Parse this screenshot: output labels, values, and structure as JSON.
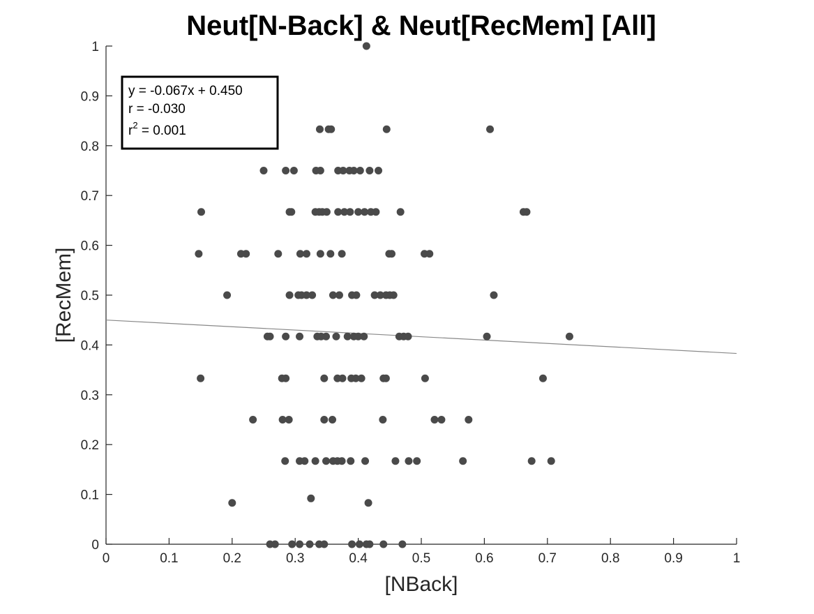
{
  "chart_data": {
    "type": "scatter",
    "title": "Neut[N-Back] & Neut[RecMem] [All]",
    "xlabel": "[NBack]",
    "ylabel": "[RecMem]",
    "xlim": [
      0,
      1
    ],
    "ylim": [
      0,
      1
    ],
    "xticks": [
      "0",
      "0.1",
      "0.2",
      "0.3",
      "0.4",
      "0.5",
      "0.6",
      "0.7",
      "0.8",
      "0.9",
      "1"
    ],
    "yticks": [
      "0",
      "0.1",
      "0.2",
      "0.3",
      "0.4",
      "0.5",
      "0.6",
      "0.7",
      "0.8",
      "0.9",
      "1"
    ],
    "grid": false,
    "marker_color": "#4a4a4a",
    "fit_line_color": "#888888",
    "fit_line": {
      "slope": -0.067,
      "intercept": 0.45
    },
    "annotation": {
      "equation": "y = -0.067x + 0.450",
      "r": "r = -0.030",
      "r2_prefix": "r",
      "r2_superscript": "2",
      "r2_value": " = 0.001",
      "placement": "top-left"
    },
    "points": [
      [
        0.413,
        1.0
      ],
      [
        0.339,
        0.833
      ],
      [
        0.353,
        0.833
      ],
      [
        0.357,
        0.833
      ],
      [
        0.445,
        0.833
      ],
      [
        0.609,
        0.833
      ],
      [
        0.25,
        0.75
      ],
      [
        0.285,
        0.75
      ],
      [
        0.298,
        0.75
      ],
      [
        0.333,
        0.75
      ],
      [
        0.34,
        0.75
      ],
      [
        0.368,
        0.75
      ],
      [
        0.376,
        0.75
      ],
      [
        0.386,
        0.75
      ],
      [
        0.393,
        0.75
      ],
      [
        0.403,
        0.75
      ],
      [
        0.418,
        0.75
      ],
      [
        0.432,
        0.75
      ],
      [
        0.151,
        0.667
      ],
      [
        0.291,
        0.667
      ],
      [
        0.294,
        0.667
      ],
      [
        0.332,
        0.667
      ],
      [
        0.338,
        0.667
      ],
      [
        0.343,
        0.667
      ],
      [
        0.35,
        0.667
      ],
      [
        0.368,
        0.667
      ],
      [
        0.378,
        0.667
      ],
      [
        0.387,
        0.667
      ],
      [
        0.4,
        0.667
      ],
      [
        0.41,
        0.667
      ],
      [
        0.42,
        0.667
      ],
      [
        0.428,
        0.667
      ],
      [
        0.467,
        0.667
      ],
      [
        0.662,
        0.667
      ],
      [
        0.667,
        0.667
      ],
      [
        0.147,
        0.583
      ],
      [
        0.214,
        0.583
      ],
      [
        0.222,
        0.583
      ],
      [
        0.273,
        0.583
      ],
      [
        0.308,
        0.583
      ],
      [
        0.318,
        0.583
      ],
      [
        0.34,
        0.583
      ],
      [
        0.356,
        0.583
      ],
      [
        0.374,
        0.583
      ],
      [
        0.449,
        0.583
      ],
      [
        0.453,
        0.583
      ],
      [
        0.505,
        0.583
      ],
      [
        0.513,
        0.583
      ],
      [
        0.192,
        0.5
      ],
      [
        0.291,
        0.5
      ],
      [
        0.305,
        0.5
      ],
      [
        0.31,
        0.5
      ],
      [
        0.318,
        0.5
      ],
      [
        0.327,
        0.5
      ],
      [
        0.36,
        0.5
      ],
      [
        0.37,
        0.5
      ],
      [
        0.39,
        0.5
      ],
      [
        0.397,
        0.5
      ],
      [
        0.426,
        0.5
      ],
      [
        0.435,
        0.5
      ],
      [
        0.444,
        0.5
      ],
      [
        0.45,
        0.5
      ],
      [
        0.456,
        0.5
      ],
      [
        0.615,
        0.5
      ],
      [
        0.256,
        0.417
      ],
      [
        0.26,
        0.417
      ],
      [
        0.285,
        0.417
      ],
      [
        0.307,
        0.417
      ],
      [
        0.335,
        0.417
      ],
      [
        0.341,
        0.417
      ],
      [
        0.349,
        0.417
      ],
      [
        0.365,
        0.417
      ],
      [
        0.383,
        0.417
      ],
      [
        0.393,
        0.417
      ],
      [
        0.4,
        0.417
      ],
      [
        0.409,
        0.417
      ],
      [
        0.465,
        0.417
      ],
      [
        0.472,
        0.417
      ],
      [
        0.479,
        0.417
      ],
      [
        0.604,
        0.417
      ],
      [
        0.735,
        0.417
      ],
      [
        0.15,
        0.333
      ],
      [
        0.279,
        0.333
      ],
      [
        0.285,
        0.333
      ],
      [
        0.346,
        0.333
      ],
      [
        0.367,
        0.333
      ],
      [
        0.375,
        0.333
      ],
      [
        0.389,
        0.333
      ],
      [
        0.396,
        0.333
      ],
      [
        0.405,
        0.333
      ],
      [
        0.44,
        0.333
      ],
      [
        0.444,
        0.333
      ],
      [
        0.506,
        0.333
      ],
      [
        0.693,
        0.333
      ],
      [
        0.233,
        0.25
      ],
      [
        0.28,
        0.25
      ],
      [
        0.29,
        0.25
      ],
      [
        0.346,
        0.25
      ],
      [
        0.359,
        0.25
      ],
      [
        0.439,
        0.25
      ],
      [
        0.521,
        0.25
      ],
      [
        0.532,
        0.25
      ],
      [
        0.575,
        0.25
      ],
      [
        0.284,
        0.167
      ],
      [
        0.307,
        0.167
      ],
      [
        0.315,
        0.167
      ],
      [
        0.332,
        0.167
      ],
      [
        0.349,
        0.167
      ],
      [
        0.36,
        0.167
      ],
      [
        0.367,
        0.167
      ],
      [
        0.374,
        0.167
      ],
      [
        0.388,
        0.167
      ],
      [
        0.411,
        0.167
      ],
      [
        0.459,
        0.167
      ],
      [
        0.48,
        0.167
      ],
      [
        0.493,
        0.167
      ],
      [
        0.566,
        0.167
      ],
      [
        0.675,
        0.167
      ],
      [
        0.706,
        0.167
      ],
      [
        0.2,
        0.083
      ],
      [
        0.325,
        0.092
      ],
      [
        0.416,
        0.083
      ],
      [
        0.26,
        0.0
      ],
      [
        0.268,
        0.0
      ],
      [
        0.295,
        0.0
      ],
      [
        0.307,
        0.0
      ],
      [
        0.323,
        0.0
      ],
      [
        0.338,
        0.0
      ],
      [
        0.346,
        0.0
      ],
      [
        0.39,
        0.0
      ],
      [
        0.402,
        0.0
      ],
      [
        0.413,
        0.0
      ],
      [
        0.418,
        0.0
      ],
      [
        0.44,
        0.0
      ],
      [
        0.47,
        0.0
      ]
    ]
  }
}
